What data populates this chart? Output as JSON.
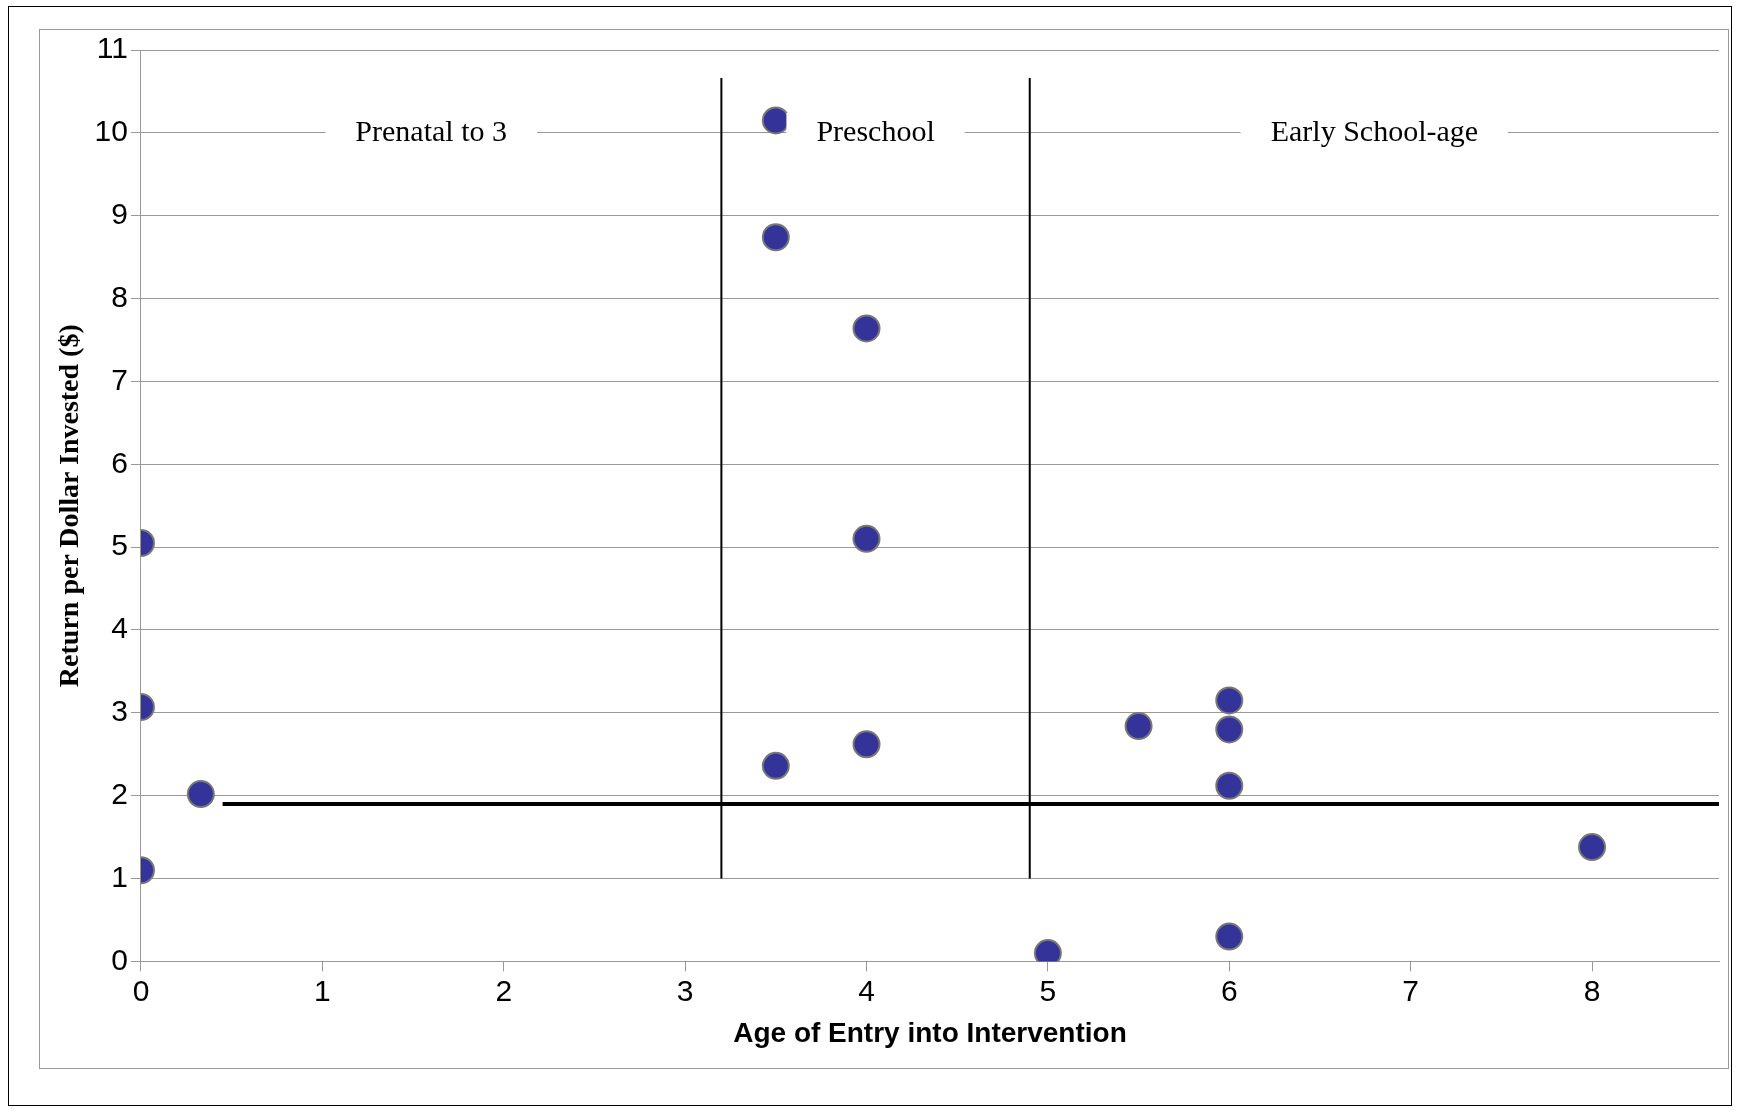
{
  "chart_data": {
    "type": "scatter",
    "xlabel": "Age of Entry into Intervention",
    "ylabel": "Return per Dollar Invested ($)",
    "x": [
      0,
      0,
      0.33,
      0,
      3.5,
      3.5,
      4,
      4,
      3.5,
      4,
      5.5,
      6,
      6,
      6,
      8,
      5,
      6
    ],
    "values": [
      5.05,
      3.07,
      2.02,
      1.1,
      10.15,
      8.74,
      7.64,
      5.1,
      2.36,
      2.62,
      2.84,
      3.15,
      2.8,
      2.12,
      1.38,
      0.1,
      0.3
    ],
    "color": "#333399",
    "marker": "circle",
    "xlim": [
      0,
      8.7
    ],
    "xticks": [
      0,
      1,
      2,
      3,
      4,
      5,
      6,
      7,
      8
    ],
    "ylim": [
      0,
      11
    ],
    "yticks": [
      0,
      1,
      2,
      3,
      4,
      5,
      6,
      7,
      8,
      9,
      10,
      11
    ],
    "grid": "y",
    "ref_lines": [
      {
        "axis": "x",
        "value": 3.2,
        "color": "#000000"
      },
      {
        "axis": "x",
        "value": 4.9,
        "color": "#000000"
      },
      {
        "axis": "y",
        "value": 1.9,
        "color": "#000000"
      }
    ],
    "annotations": [
      "Prenatal to 3",
      "Preschool",
      "Early School-age"
    ]
  }
}
